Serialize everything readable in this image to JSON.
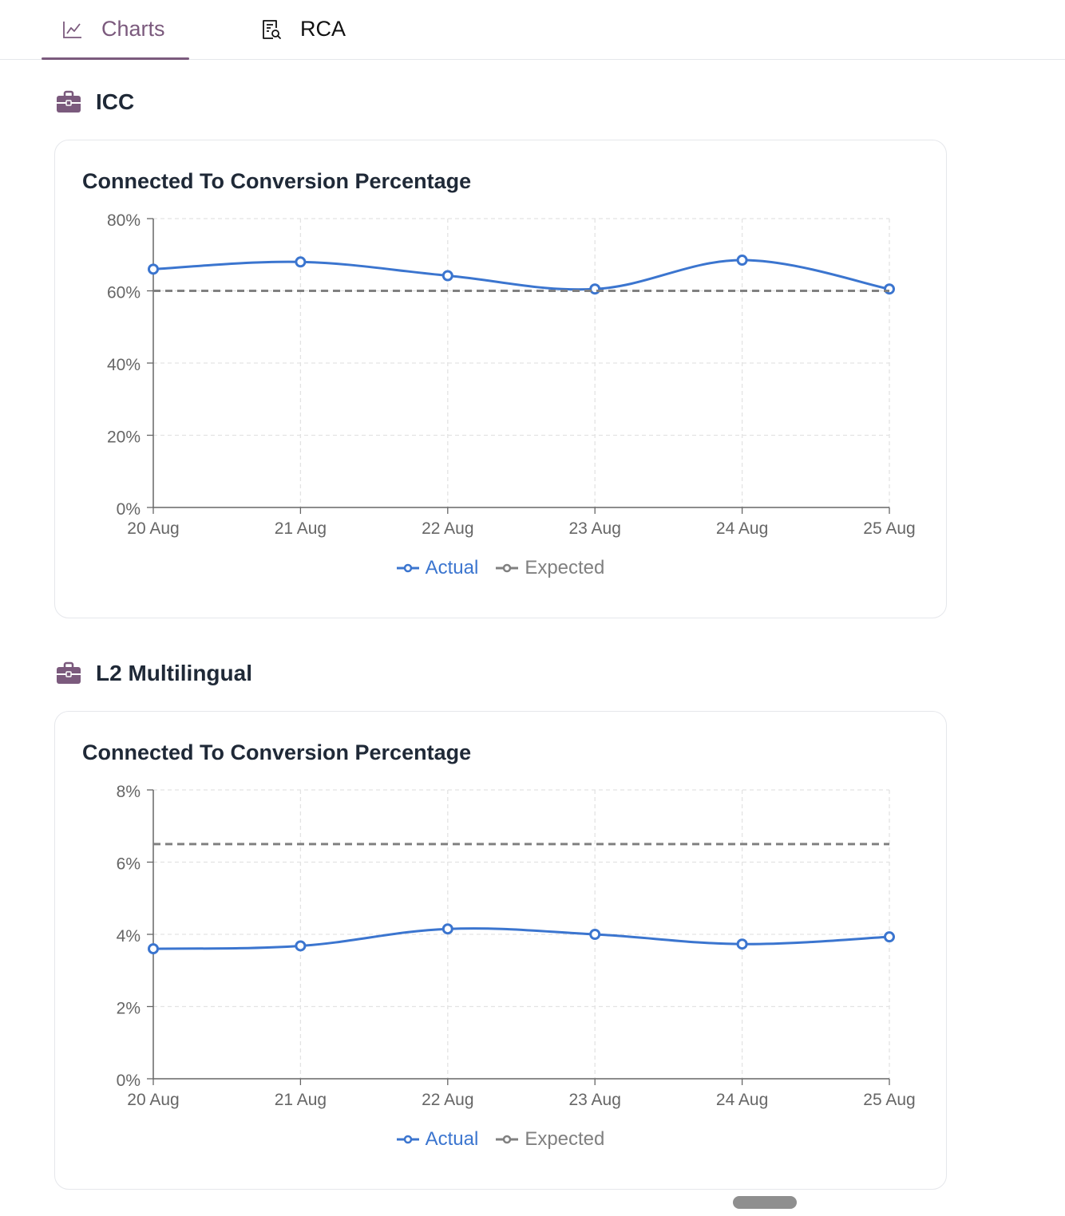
{
  "tabs": [
    {
      "label": "Charts",
      "icon": "line-chart-icon",
      "active": true
    },
    {
      "label": "RCA",
      "icon": "report-search-icon",
      "active": false
    }
  ],
  "colors": {
    "accent": "#7b5a7d",
    "actual": "#3b75cf",
    "expected": "#808080"
  },
  "sections": [
    {
      "title": "ICC",
      "icon": "briefcase-icon",
      "card_title": "Connected To Conversion Percentage",
      "legend": {
        "actual": "Actual",
        "expected": "Expected"
      }
    },
    {
      "title": "L2 Multilingual",
      "icon": "briefcase-icon",
      "card_title": "Connected To Conversion Percentage",
      "legend": {
        "actual": "Actual",
        "expected": "Expected"
      }
    }
  ],
  "chart_data": [
    {
      "type": "line",
      "title": "Connected To Conversion Percentage",
      "categories": [
        "20 Aug",
        "21 Aug",
        "22 Aug",
        "23 Aug",
        "24 Aug",
        "25 Aug"
      ],
      "yticks": [
        "0%",
        "20%",
        "40%",
        "60%",
        "80%"
      ],
      "ylim": [
        0,
        80
      ],
      "grid": true,
      "legend_position": "bottom",
      "series": [
        {
          "name": "Actual",
          "values": [
            66,
            68,
            64.2,
            60.5,
            68.5,
            60.5
          ],
          "style": "solid"
        },
        {
          "name": "Expected",
          "values": [
            60,
            60,
            60,
            60,
            60,
            60
          ],
          "style": "dashed"
        }
      ]
    },
    {
      "type": "line",
      "title": "Connected To Conversion Percentage",
      "categories": [
        "20 Aug",
        "21 Aug",
        "22 Aug",
        "23 Aug",
        "24 Aug",
        "25 Aug"
      ],
      "yticks": [
        "0%",
        "2%",
        "4%",
        "6%",
        "8%"
      ],
      "ylim": [
        0,
        8
      ],
      "grid": true,
      "legend_position": "bottom",
      "series": [
        {
          "name": "Actual",
          "values": [
            3.6,
            3.68,
            4.15,
            4.0,
            3.73,
            3.93
          ],
          "style": "solid"
        },
        {
          "name": "Expected",
          "values": [
            6.5,
            6.5,
            6.5,
            6.5,
            6.5,
            6.5
          ],
          "style": "dashed"
        }
      ]
    }
  ]
}
